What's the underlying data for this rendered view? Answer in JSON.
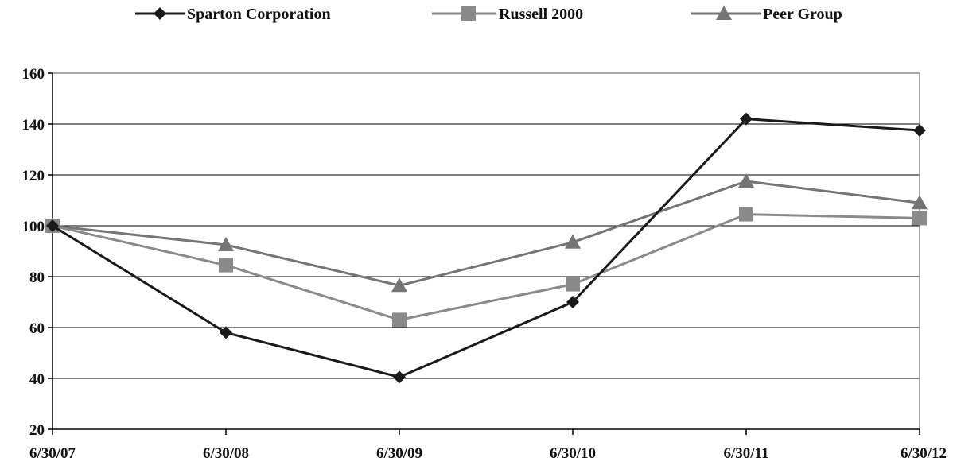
{
  "chart_data": {
    "type": "line",
    "categories": [
      "6/30/07",
      "6/30/08",
      "6/30/09",
      "6/30/10",
      "6/30/11",
      "6/30/12"
    ],
    "ylim": [
      20,
      160
    ],
    "yticks": [
      20,
      40,
      60,
      80,
      100,
      120,
      140,
      160
    ],
    "grid": true,
    "legend_position": "top",
    "series": [
      {
        "name": "Sparton Corporation",
        "values": [
          100,
          58,
          40.5,
          70,
          142,
          137.5
        ],
        "color": "#1a1a1a",
        "marker": "diamond"
      },
      {
        "name": "Russell 2000",
        "values": [
          100,
          84.5,
          63,
          77,
          104.5,
          103
        ],
        "color": "#8a8a8a",
        "marker": "square"
      },
      {
        "name": "Peer Group",
        "values": [
          100,
          92.5,
          76.5,
          93.5,
          117.5,
          109
        ],
        "color": "#757575",
        "marker": "triangle"
      }
    ]
  }
}
